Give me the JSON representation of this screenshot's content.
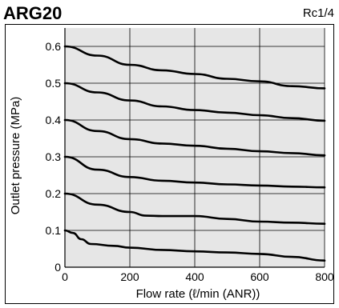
{
  "header": {
    "title": "ARG20",
    "port": "Rc1/4"
  },
  "chart_data": {
    "type": "line",
    "title": "ARG20",
    "xlabel": "Flow rate (ℓ/min (ANR))",
    "ylabel": "Outlet pressure (MPa)",
    "xlim": [
      0,
      800
    ],
    "ylim": [
      0,
      0.65
    ],
    "grid": true,
    "plot_background": "#e6e6e6",
    "line_color": "#000000",
    "x_ticks": [
      {
        "value": 0,
        "label": "0"
      },
      {
        "value": 200,
        "label": "200"
      },
      {
        "value": 400,
        "label": "400"
      },
      {
        "value": 600,
        "label": "600"
      },
      {
        "value": 800,
        "label": "800"
      }
    ],
    "y_ticks": [
      {
        "value": 0,
        "label": "0"
      },
      {
        "value": 0.1,
        "label": "0.1"
      },
      {
        "value": 0.2,
        "label": "0.2"
      },
      {
        "value": 0.3,
        "label": "0.3"
      },
      {
        "value": 0.4,
        "label": "0.4"
      },
      {
        "value": 0.5,
        "label": "0.5"
      },
      {
        "value": 0.6,
        "label": "0.6"
      }
    ],
    "series": [
      {
        "x": [
          0,
          100,
          200,
          300,
          400,
          500,
          600,
          700,
          800
        ],
        "y": [
          0.6,
          0.575,
          0.55,
          0.535,
          0.525,
          0.512,
          0.505,
          0.492,
          0.486
        ]
      },
      {
        "x": [
          0,
          100,
          200,
          300,
          400,
          500,
          600,
          700,
          800
        ],
        "y": [
          0.5,
          0.475,
          0.453,
          0.437,
          0.427,
          0.42,
          0.413,
          0.405,
          0.398
        ]
      },
      {
        "x": [
          0,
          100,
          200,
          300,
          400,
          500,
          600,
          700,
          800
        ],
        "y": [
          0.4,
          0.37,
          0.348,
          0.336,
          0.33,
          0.322,
          0.315,
          0.31,
          0.304
        ]
      },
      {
        "x": [
          0,
          100,
          200,
          300,
          400,
          500,
          600,
          700,
          800
        ],
        "y": [
          0.3,
          0.265,
          0.245,
          0.235,
          0.23,
          0.225,
          0.222,
          0.219,
          0.217
        ]
      },
      {
        "x": [
          0,
          100,
          200,
          250,
          300,
          400,
          500,
          600,
          700,
          800
        ],
        "y": [
          0.2,
          0.17,
          0.15,
          0.14,
          0.139,
          0.139,
          0.131,
          0.124,
          0.121,
          0.118
        ]
      },
      {
        "x": [
          0,
          25,
          50,
          80,
          150,
          200,
          300,
          400,
          500,
          600,
          700,
          800
        ],
        "y": [
          0.1,
          0.093,
          0.076,
          0.063,
          0.058,
          0.053,
          0.047,
          0.043,
          0.04,
          0.036,
          0.028,
          0.018
        ]
      }
    ]
  }
}
